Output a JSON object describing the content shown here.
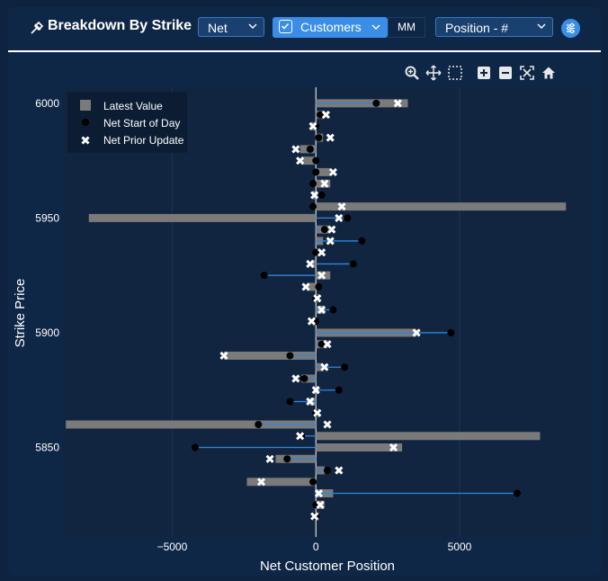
{
  "header": {
    "title": "Breakdown By Strike",
    "net_select": "Net",
    "customers_label": "Customers",
    "mm_label": "MM",
    "position_select": "Position - #"
  },
  "toolbar": {
    "tools": [
      "zoom-icon",
      "pan-icon",
      "box-select-icon",
      "zoom-in-icon",
      "zoom-out-icon",
      "autoscale-icon",
      "home-icon"
    ]
  },
  "colors": {
    "bar": "#7a7a7a",
    "line": "#2e86e0",
    "plot_bg": "#112540",
    "accent": "#3a8ee8"
  },
  "chart_data": {
    "type": "bar",
    "orientation": "horizontal",
    "xlabel": "Net Customer Position",
    "ylabel": "Strike Price",
    "xlim": [
      -8800,
      9600
    ],
    "ylim": [
      5811,
      6007
    ],
    "xticks": [
      -5000,
      0,
      5000
    ],
    "yticks": [
      5850,
      5900,
      5950,
      6000
    ],
    "legend_position": "top-left",
    "legend": [
      "Latest Value",
      "Net Start of Day",
      "Net Prior Update"
    ],
    "rows": [
      {
        "strike": 6000,
        "latest": 3200,
        "start": 2100,
        "prior": 2850
      },
      {
        "strike": 5995,
        "latest": 300,
        "start": 150,
        "prior": 350
      },
      {
        "strike": 5990,
        "latest": -150,
        "start": 0,
        "prior": -100
      },
      {
        "strike": 5985,
        "latest": 250,
        "start": 100,
        "prior": 500
      },
      {
        "strike": 5980,
        "latest": -550,
        "start": -200,
        "prior": -700
      },
      {
        "strike": 5975,
        "latest": -500,
        "start": 0,
        "prior": -550
      },
      {
        "strike": 5970,
        "latest": 500,
        "start": 0,
        "prior": 600
      },
      {
        "strike": 5965,
        "latest": 500,
        "start": -100,
        "prior": 300
      },
      {
        "strike": 5960,
        "latest": -100,
        "start": 200,
        "prior": -50
      },
      {
        "strike": 5955,
        "latest": 8700,
        "start": -100,
        "prior": 900
      },
      {
        "strike": 5950,
        "latest": -7900,
        "start": 1100,
        "prior": 800
      },
      {
        "strike": 5945,
        "latest": 450,
        "start": 300,
        "prior": 550
      },
      {
        "strike": 5940,
        "latest": 250,
        "start": 1600,
        "prior": 500
      },
      {
        "strike": 5935,
        "latest": 100,
        "start": 0,
        "prior": 200
      },
      {
        "strike": 5930,
        "latest": -150,
        "start": 1300,
        "prior": -200
      },
      {
        "strike": 5925,
        "latest": 500,
        "start": -1800,
        "prior": 200
      },
      {
        "strike": 5920,
        "latest": -300,
        "start": 100,
        "prior": -350
      },
      {
        "strike": 5915,
        "latest": 100,
        "start": 0,
        "prior": 50
      },
      {
        "strike": 5910,
        "latest": 300,
        "start": 600,
        "prior": 200
      },
      {
        "strike": 5905,
        "latest": -100,
        "start": 0,
        "prior": -150
      },
      {
        "strike": 5900,
        "latest": 3500,
        "start": 4700,
        "prior": 3500
      },
      {
        "strike": 5895,
        "latest": 400,
        "start": 200,
        "prior": 400
      },
      {
        "strike": 5890,
        "latest": -3200,
        "start": -900,
        "prior": -3200
      },
      {
        "strike": 5885,
        "latest": 250,
        "start": 1000,
        "prior": 300
      },
      {
        "strike": 5880,
        "latest": -500,
        "start": -400,
        "prior": -700
      },
      {
        "strike": 5875,
        "latest": 100,
        "start": 800,
        "prior": 0
      },
      {
        "strike": 5870,
        "latest": -200,
        "start": -900,
        "prior": -200
      },
      {
        "strike": 5865,
        "latest": 100,
        "start": 0,
        "prior": 50
      },
      {
        "strike": 5860,
        "latest": -8700,
        "start": -2000,
        "prior": 400
      },
      {
        "strike": 5855,
        "latest": 7800,
        "start": -500,
        "prior": -550
      },
      {
        "strike": 5850,
        "latest": 3000,
        "start": -4200,
        "prior": 2700
      },
      {
        "strike": 5845,
        "latest": -1400,
        "start": -1000,
        "prior": -1600
      },
      {
        "strike": 5840,
        "latest": 300,
        "start": 400,
        "prior": 800
      },
      {
        "strike": 5835,
        "latest": -2400,
        "start": -100,
        "prior": -1900
      },
      {
        "strike": 5830,
        "latest": 600,
        "start": 7000,
        "prior": 100
      },
      {
        "strike": 5825,
        "latest": 300,
        "start": 0,
        "prior": 150
      },
      {
        "strike": 5820,
        "latest": 100,
        "start": 0,
        "prior": -50
      }
    ]
  }
}
